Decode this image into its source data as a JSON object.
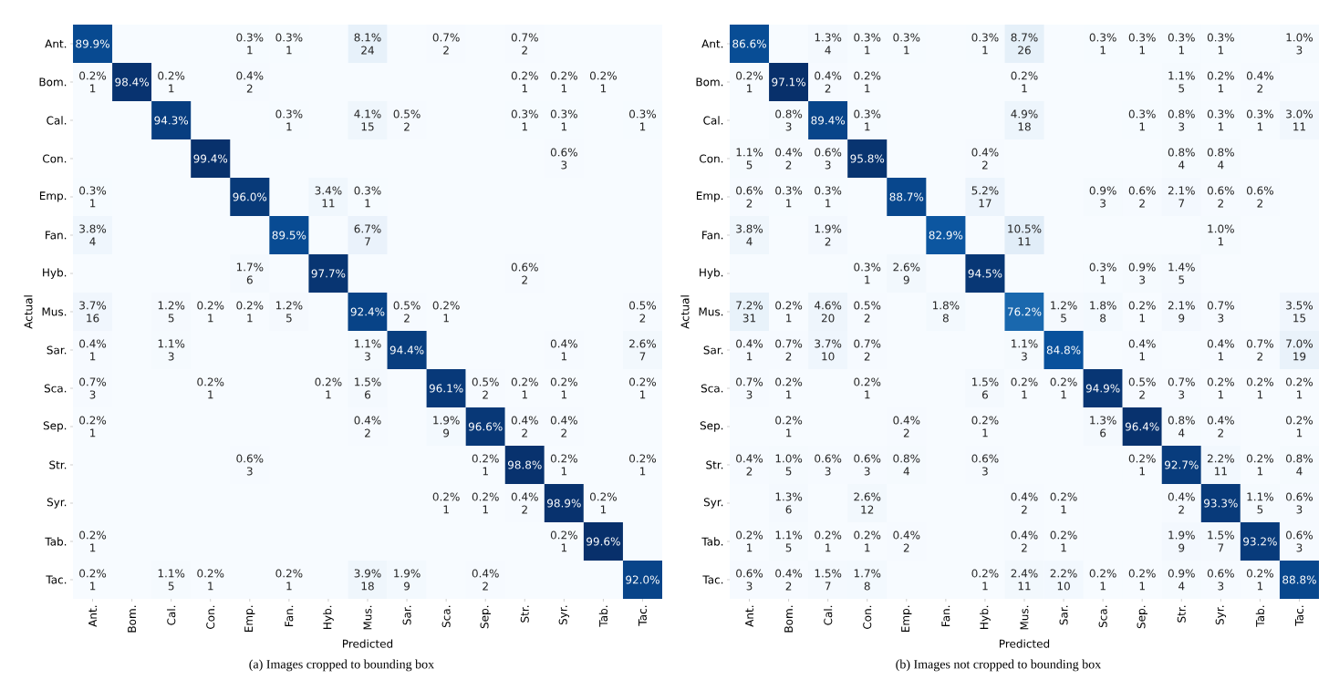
{
  "chart_data": [
    {
      "type": "heatmap",
      "xlabel": "Predicted",
      "ylabel": "Actual",
      "categories": [
        "Ant.",
        "Bom.",
        "Cal.",
        "Con.",
        "Emp.",
        "Fan.",
        "Hyb.",
        "Mus.",
        "Sar.",
        "Sca.",
        "Sep.",
        "Str.",
        "Syr.",
        "Tab.",
        "Tac."
      ],
      "y_categories": [
        "Ant.",
        "Bom.",
        "Cal.",
        "Con.",
        "Emp.",
        "Fan.",
        "Hyb.",
        "Mus.",
        "Sar.",
        "Sca.",
        "Sep.",
        "Str.",
        "Syr.",
        "Tab.",
        "Tac."
      ],
      "cells": [
        [
          89.9,
          null,
          null,
          null,
          0.3,
          0.3,
          null,
          8.1,
          null,
          0.7,
          null,
          0.7,
          null,
          null,
          null
        ],
        [
          0.2,
          98.4,
          0.2,
          null,
          0.4,
          null,
          null,
          null,
          null,
          null,
          null,
          0.2,
          0.2,
          0.2,
          null
        ],
        [
          null,
          null,
          94.3,
          null,
          null,
          0.3,
          null,
          4.1,
          0.5,
          null,
          null,
          0.3,
          0.3,
          null,
          0.3
        ],
        [
          null,
          null,
          null,
          99.4,
          null,
          null,
          null,
          null,
          null,
          null,
          null,
          null,
          0.6,
          null,
          null
        ],
        [
          0.3,
          null,
          null,
          null,
          96.0,
          null,
          3.4,
          0.3,
          null,
          null,
          null,
          null,
          null,
          null,
          null
        ],
        [
          3.8,
          null,
          null,
          null,
          null,
          89.5,
          null,
          6.7,
          null,
          null,
          null,
          null,
          null,
          null,
          null
        ],
        [
          null,
          null,
          null,
          null,
          1.7,
          null,
          97.7,
          null,
          null,
          null,
          null,
          0.6,
          null,
          null,
          null
        ],
        [
          3.7,
          null,
          1.2,
          0.2,
          0.2,
          1.2,
          null,
          92.4,
          0.5,
          0.2,
          null,
          null,
          null,
          null,
          0.5
        ],
        [
          0.4,
          null,
          1.1,
          null,
          null,
          null,
          null,
          1.1,
          94.4,
          null,
          null,
          null,
          0.4,
          null,
          2.6
        ],
        [
          0.7,
          null,
          null,
          0.2,
          null,
          null,
          0.2,
          1.5,
          null,
          96.1,
          0.5,
          0.2,
          0.2,
          null,
          0.2
        ],
        [
          0.2,
          null,
          null,
          null,
          null,
          null,
          null,
          0.4,
          null,
          1.9,
          96.6,
          0.4,
          0.4,
          null,
          null
        ],
        [
          null,
          null,
          null,
          null,
          0.6,
          null,
          null,
          null,
          null,
          null,
          0.2,
          98.8,
          0.2,
          null,
          0.2
        ],
        [
          null,
          null,
          null,
          null,
          null,
          null,
          null,
          null,
          null,
          0.2,
          0.2,
          0.4,
          98.9,
          0.2,
          null
        ],
        [
          0.2,
          null,
          null,
          null,
          null,
          null,
          null,
          null,
          null,
          null,
          null,
          null,
          0.2,
          99.6,
          null
        ],
        [
          0.2,
          null,
          1.1,
          0.2,
          null,
          0.2,
          null,
          3.9,
          1.9,
          null,
          0.4,
          null,
          null,
          null,
          92.0
        ]
      ],
      "cell_labels": [
        [
          "89.9%",
          null,
          null,
          null,
          "0.3%",
          "0.3%",
          null,
          "8.1%",
          null,
          "0.7%",
          null,
          "0.7%",
          null,
          null,
          null
        ],
        [
          "0.2%",
          "98.4%",
          "0.2%",
          null,
          "0.4%",
          null,
          null,
          null,
          null,
          null,
          null,
          "0.2%",
          "0.2%",
          "0.2%",
          null
        ],
        [
          null,
          null,
          "94.3%",
          null,
          null,
          "0.3%",
          null,
          "4.1%",
          "0.5%",
          null,
          null,
          "0.3%",
          "0.3%",
          null,
          "0.3%"
        ],
        [
          null,
          null,
          null,
          "99.4%",
          null,
          null,
          null,
          null,
          null,
          null,
          null,
          null,
          "0.6%",
          null,
          null
        ],
        [
          "0.3%",
          null,
          null,
          null,
          "96.0%",
          null,
          "3.4%",
          "0.3%",
          null,
          null,
          null,
          null,
          null,
          null,
          null
        ],
        [
          "3.8%",
          null,
          null,
          null,
          null,
          "89.5%",
          null,
          "6.7%",
          null,
          null,
          null,
          null,
          null,
          null,
          null
        ],
        [
          null,
          null,
          null,
          null,
          "1.7%",
          null,
          "97.7%",
          null,
          null,
          null,
          null,
          "0.6%",
          null,
          null,
          null
        ],
        [
          "3.7%",
          null,
          "1.2%",
          "0.2%",
          "0.2%",
          "1.2%",
          null,
          "92.4%",
          "0.5%",
          "0.2%",
          null,
          null,
          null,
          null,
          "0.5%"
        ],
        [
          "0.4%",
          null,
          "1.1%",
          null,
          null,
          null,
          null,
          "1.1%",
          "94.4%",
          null,
          null,
          null,
          "0.4%",
          null,
          "2.6%"
        ],
        [
          "0.7%",
          null,
          null,
          "0.2%",
          null,
          null,
          "0.2%",
          "1.5%",
          null,
          "96.1%",
          "0.5%",
          "0.2%",
          "0.2%",
          null,
          "0.2%"
        ],
        [
          "0.2%",
          null,
          null,
          null,
          null,
          null,
          null,
          "0.4%",
          null,
          "1.9%",
          "96.6%",
          "0.4%",
          "0.4%",
          null,
          null
        ],
        [
          null,
          null,
          null,
          null,
          "0.6%",
          null,
          null,
          null,
          null,
          null,
          "0.2%",
          "98.8%",
          "0.2%",
          null,
          "0.2%"
        ],
        [
          null,
          null,
          null,
          null,
          null,
          null,
          null,
          null,
          null,
          "0.2%",
          "0.2%",
          "0.4%",
          "98.9%",
          "0.2%",
          null
        ],
        [
          "0.2%",
          null,
          null,
          null,
          null,
          null,
          null,
          null,
          null,
          null,
          null,
          null,
          "0.2%",
          "99.6%",
          null
        ],
        [
          "0.2%",
          null,
          "1.1%",
          "0.2%",
          null,
          "0.2%",
          null,
          "3.9%",
          "1.9%",
          null,
          "0.4%",
          null,
          null,
          null,
          "92.0%"
        ]
      ],
      "annotations": [
        "1",
        "1",
        "24",
        "2",
        "2",
        "1",
        "1",
        "2",
        "1",
        "1",
        "1",
        "1",
        "15",
        "2",
        "1",
        "1",
        "1",
        "3",
        "1",
        "11",
        "1",
        "4",
        "7",
        "6",
        "2",
        "16",
        "5",
        "1",
        "1",
        "5",
        "2",
        "1",
        "2",
        "1",
        "3",
        "3",
        "1",
        "7",
        "3",
        "1",
        "1",
        "6",
        "2",
        "1",
        "1",
        "1",
        "1",
        "2",
        "9",
        "2",
        "2",
        "3",
        "1",
        "1",
        "1",
        "1",
        "1",
        "2",
        "1",
        "1",
        "1",
        "1",
        "5",
        "1",
        "1",
        "18",
        "9",
        "2",
        "(a) Images cropped to bounding box"
      ]
    },
    {
      "type": "heatmap",
      "xlabel": "Predicted",
      "ylabel": "Actual",
      "categories": [
        "Ant.",
        "Bom.",
        "Cal.",
        "Con.",
        "Emp.",
        "Fan.",
        "Hyb.",
        "Mus.",
        "Sar.",
        "Sca.",
        "Sep.",
        "Str.",
        "Syr.",
        "Tab.",
        "Tac."
      ],
      "y_categories": [
        "Ant.",
        "Bom.",
        "Cal.",
        "Con.",
        "Emp.",
        "Fan.",
        "Hyb.",
        "Mus.",
        "Sar.",
        "Sca.",
        "Sep.",
        "Str.",
        "Syr.",
        "Tab.",
        "Tac."
      ],
      "cells": [
        [
          86.6,
          null,
          1.3,
          0.3,
          0.3,
          null,
          0.3,
          8.7,
          null,
          0.3,
          0.3,
          0.3,
          0.3,
          null,
          1.0
        ],
        [
          0.2,
          97.1,
          0.4,
          0.2,
          null,
          null,
          null,
          0.2,
          null,
          null,
          null,
          1.1,
          0.2,
          0.4,
          null
        ],
        [
          null,
          0.8,
          89.4,
          0.3,
          null,
          null,
          null,
          4.9,
          null,
          null,
          0.3,
          0.8,
          0.3,
          0.3,
          3.0
        ],
        [
          1.1,
          0.4,
          0.6,
          95.8,
          null,
          null,
          0.4,
          null,
          null,
          null,
          null,
          0.8,
          0.8,
          null,
          null
        ],
        [
          0.6,
          0.3,
          0.3,
          null,
          88.7,
          null,
          5.2,
          null,
          null,
          0.9,
          0.6,
          2.1,
          0.6,
          0.6,
          null
        ],
        [
          3.8,
          null,
          1.9,
          null,
          null,
          82.9,
          null,
          10.5,
          null,
          null,
          null,
          null,
          1.0,
          null,
          null
        ],
        [
          null,
          null,
          null,
          0.3,
          2.6,
          null,
          94.5,
          null,
          null,
          0.3,
          0.9,
          1.4,
          null,
          null,
          null
        ],
        [
          7.2,
          0.2,
          4.6,
          0.5,
          null,
          1.8,
          null,
          76.2,
          1.2,
          1.8,
          0.2,
          2.1,
          0.7,
          null,
          3.5
        ],
        [
          0.4,
          0.7,
          3.7,
          0.7,
          null,
          null,
          null,
          1.1,
          84.8,
          null,
          0.4,
          null,
          0.4,
          0.7,
          7.0
        ],
        [
          0.7,
          0.2,
          null,
          0.2,
          null,
          null,
          1.5,
          0.2,
          0.2,
          94.9,
          0.5,
          0.7,
          0.2,
          0.2,
          0.2
        ],
        [
          null,
          0.2,
          null,
          null,
          0.4,
          null,
          0.2,
          null,
          null,
          1.3,
          96.4,
          0.8,
          0.4,
          null,
          0.2
        ],
        [
          0.4,
          1.0,
          0.6,
          0.6,
          0.8,
          null,
          0.6,
          null,
          null,
          null,
          0.2,
          92.7,
          2.2,
          0.2,
          0.8
        ],
        [
          null,
          1.3,
          null,
          2.6,
          null,
          null,
          null,
          0.4,
          0.2,
          null,
          null,
          0.4,
          93.3,
          1.1,
          0.6
        ],
        [
          0.2,
          1.1,
          0.2,
          0.2,
          0.4,
          null,
          null,
          0.4,
          0.2,
          null,
          null,
          1.9,
          1.5,
          93.2,
          0.6
        ],
        [
          0.6,
          0.4,
          1.5,
          1.7,
          null,
          null,
          0.2,
          2.4,
          2.2,
          0.2,
          0.2,
          0.9,
          0.6,
          0.2,
          88.8
        ]
      ],
      "cell_labels": [
        [
          "86.6%",
          null,
          "1.3%",
          "0.3%",
          "0.3%",
          null,
          "0.3%",
          "8.7%",
          null,
          "0.3%",
          "0.3%",
          "0.3%",
          "0.3%",
          null,
          "1.0%"
        ],
        [
          "0.2%",
          "97.1%",
          "0.4%",
          "0.2%",
          null,
          null,
          null,
          "0.2%",
          null,
          null,
          null,
          "1.1%",
          "0.2%",
          "0.4%",
          null
        ],
        [
          null,
          "0.8%",
          "89.4%",
          "0.3%",
          null,
          null,
          null,
          "4.9%",
          null,
          null,
          "0.3%",
          "0.8%",
          "0.3%",
          "0.3%",
          "3.0%"
        ],
        [
          "1.1%",
          "0.4%",
          "0.6%",
          "95.8%",
          null,
          null,
          "0.4%",
          null,
          null,
          null,
          null,
          "0.8%",
          "0.8%",
          null,
          null
        ],
        [
          "0.6%",
          "0.3%",
          "0.3%",
          null,
          "88.7%",
          null,
          "5.2%",
          null,
          null,
          "0.9%",
          "0.6%",
          "2.1%",
          "0.6%",
          "0.6%",
          null
        ],
        [
          "3.8%",
          null,
          "1.9%",
          null,
          null,
          "82.9%",
          null,
          "10.5%",
          null,
          null,
          null,
          null,
          "1.0%",
          null,
          null
        ],
        [
          null,
          null,
          null,
          "0.3%",
          "2.6%",
          null,
          "94.5%",
          null,
          null,
          "0.3%",
          "0.9%",
          "1.4%",
          null,
          null,
          null
        ],
        [
          "7.2%",
          "0.2%",
          "4.6%",
          "0.5%",
          null,
          "1.8%",
          null,
          "76.2%",
          "1.2%",
          "1.8%",
          "0.2%",
          "2.1%",
          "0.7%",
          null,
          "3.5%"
        ],
        [
          "0.4%",
          "0.7%",
          "3.7%",
          "0.7%",
          null,
          null,
          null,
          "1.1%",
          "84.8%",
          null,
          "0.4%",
          null,
          "0.4%",
          "0.7%",
          "7.0%"
        ],
        [
          "0.7%",
          "0.2%",
          null,
          "0.2%",
          null,
          null,
          "1.5%",
          "0.2%",
          "0.2%",
          "94.9%",
          "0.5%",
          "0.7%",
          "0.2%",
          "0.2%",
          "0.2%"
        ],
        [
          null,
          "0.2%",
          null,
          null,
          "0.4%",
          null,
          "0.2%",
          null,
          null,
          "1.3%",
          "96.4%",
          "0.8%",
          "0.4%",
          null,
          "0.2%"
        ],
        [
          "0.4%",
          "1.0%",
          "0.6%",
          "0.6%",
          "0.8%",
          null,
          "0.6%",
          null,
          null,
          null,
          "0.2%",
          "92.7%",
          "2.2%",
          "0.2%",
          "0.8%"
        ],
        [
          null,
          "1.3%",
          null,
          "2.6%",
          null,
          null,
          null,
          "0.4%",
          "0.2%",
          null,
          null,
          "0.4%",
          "93.3%",
          "1.1%",
          "0.6%"
        ],
        [
          "0.2%",
          "1.1%",
          "0.2%",
          "0.2%",
          "0.4%",
          null,
          null,
          "0.4%",
          "0.2%",
          null,
          null,
          "1.9%",
          "1.5%",
          "93.2%",
          "0.6%"
        ],
        [
          "0.6%",
          "0.4%",
          "1.5%",
          "1.7%",
          null,
          null,
          "0.2%",
          "2.4%",
          "2.2%",
          "0.2%",
          "0.2%",
          "0.9%",
          "0.6%",
          "0.2%",
          "88.8%"
        ]
      ],
      "annotations": [
        "4",
        "1",
        "1",
        "1",
        "26",
        "1",
        "1",
        "1",
        "1",
        "3",
        "1",
        "2",
        "1",
        "1",
        "5",
        "1",
        "2",
        "3",
        "1",
        "18",
        "1",
        "3",
        "1",
        "1",
        "11",
        "5",
        "2",
        "3",
        "2",
        "4",
        "4",
        "2",
        "1",
        "1",
        "17",
        "3",
        "2",
        "7",
        "2",
        "2",
        "4",
        "2",
        "11",
        "1",
        "1",
        "9",
        "1",
        "3",
        "5",
        "31",
        "1",
        "20",
        "2",
        "8",
        "5",
        "8",
        "1",
        "9",
        "3",
        "15",
        "1",
        "2",
        "10",
        "2",
        "3",
        "1",
        "1",
        "2",
        "19",
        "3",
        "1",
        "1",
        "6",
        "1",
        "1",
        "2",
        "3",
        "1",
        "1",
        "1",
        "1",
        "2",
        "1",
        "6",
        "4",
        "2",
        "1",
        "2",
        "5",
        "3",
        "3",
        "4",
        "3",
        "1",
        "11",
        "1",
        "4",
        "6",
        "12",
        "2",
        "1",
        "2",
        "5",
        "3",
        "1",
        "5",
        "1",
        "1",
        "2",
        "2",
        "1",
        "9",
        "7",
        "3",
        "3",
        "2",
        "7",
        "8",
        "1",
        "11",
        "10",
        "1",
        "1",
        "4",
        "3",
        "1",
        "(b) Images not cropped to bounding box"
      ]
    }
  ]
}
